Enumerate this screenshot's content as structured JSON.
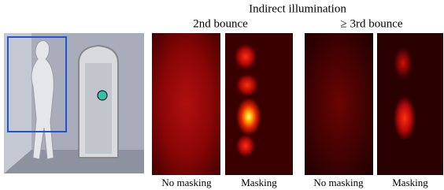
{
  "header": {
    "title": "Indirect illumination",
    "groups": [
      "2nd bounce",
      "≥ 3rd bounce"
    ]
  },
  "captions": [
    "No masking",
    "Masking",
    "No masking",
    "Masking"
  ]
}
